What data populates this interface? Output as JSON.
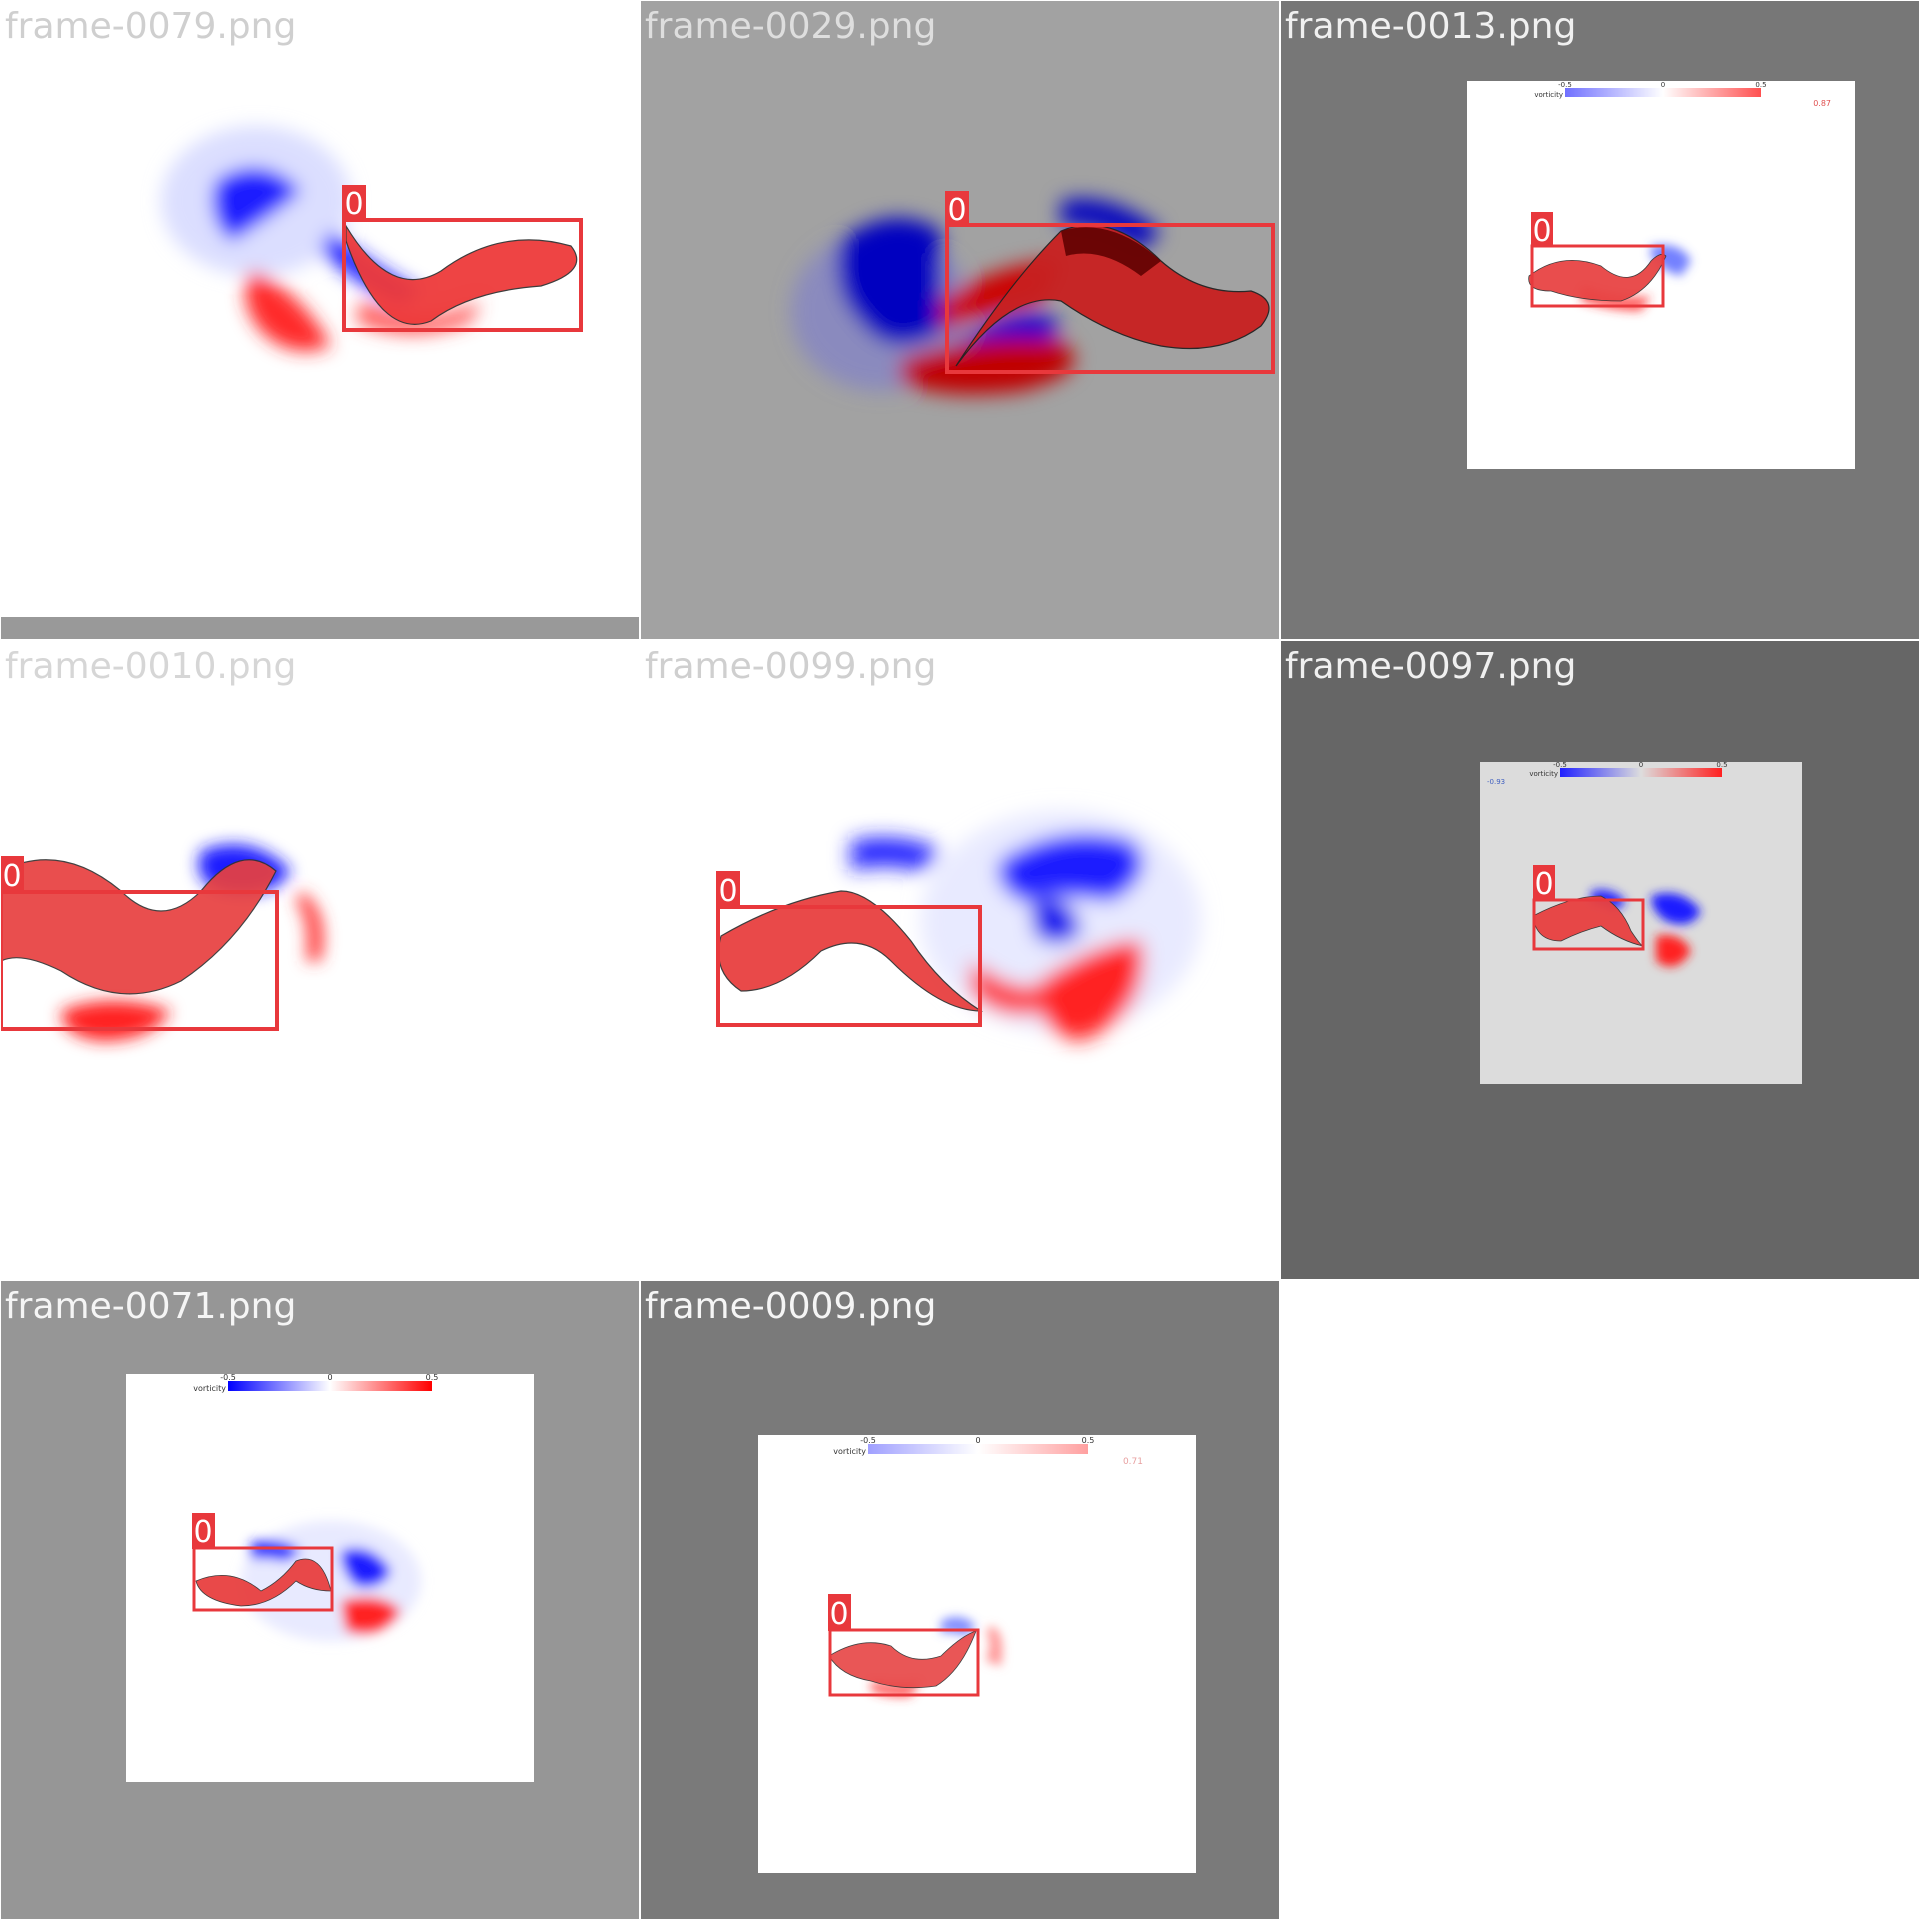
{
  "tiles": [
    {
      "filename": "frame-0079.png",
      "filename_color": "#cfcfcf",
      "background": "#ffffff",
      "detection_label": "0"
    },
    {
      "filename": "frame-0029.png",
      "filename_color": "#dedede",
      "background": "#a2a2a2",
      "detection_label": "0"
    },
    {
      "filename": "frame-0013.png",
      "filename_color": "#f0f0f0",
      "background": "#777777",
      "detection_label": "0",
      "colorbar": {
        "label": "vorticity",
        "ticks": [
          "-0.5",
          "0",
          "0.5"
        ],
        "value_text": "0.87",
        "value_color": "#e05050"
      }
    },
    {
      "filename": "frame-0010.png",
      "filename_color": "#d6d6d6",
      "background": "#ffffff",
      "detection_label": "0"
    },
    {
      "filename": "frame-0099.png",
      "filename_color": "#cfcfcf",
      "background": "#ffffff",
      "detection_label": "0"
    },
    {
      "filename": "frame-0097.png",
      "filename_color": "#f0f0f0",
      "background": "#666666",
      "detection_label": "0",
      "colorbar": {
        "label": "vorticity",
        "ticks": [
          "-0.5",
          "0",
          "0.5"
        ],
        "value_text": "-0.93",
        "value_color": "#4060c0"
      }
    },
    {
      "filename": "frame-0071.png",
      "filename_color": "#f5f5f5",
      "background": "#969696",
      "detection_label": "0",
      "colorbar": {
        "label": "vorticity",
        "ticks": [
          "-0.5",
          "0",
          "0.5"
        ]
      }
    },
    {
      "filename": "frame-0009.png",
      "filename_color": "#f5f5f5",
      "background": "#7a7a7a",
      "detection_label": "0",
      "colorbar": {
        "label": "vorticity",
        "ticks": [
          "-0.5",
          "0",
          "0.5"
        ],
        "value_text": "0.71",
        "value_color": "#e8a0a0"
      }
    }
  ],
  "colors": {
    "box": "#e8383c",
    "positive": "#ff1010",
    "negative": "#1010ee",
    "dark_red": "#c00000",
    "dark_blue": "#0000b0"
  }
}
